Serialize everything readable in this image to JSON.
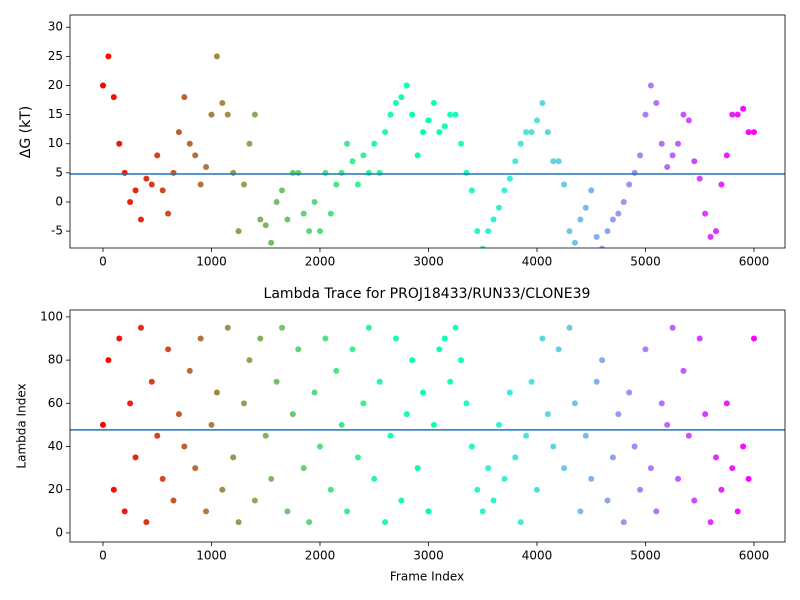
{
  "chart_data": [
    {
      "type": "scatter",
      "ylabel": "ΔG (kT)",
      "colormap": "rainbow_r",
      "clim": [
        0,
        6000
      ],
      "hline": 4.8,
      "hline_color": "#1f77b4",
      "xlim": [
        -304,
        6286
      ],
      "ylim": [
        -7.9,
        32.1
      ],
      "xticks": [
        0,
        1000,
        2000,
        3000,
        4000,
        5000,
        6000
      ],
      "yticks": [
        -5,
        0,
        5,
        10,
        15,
        20,
        25,
        30
      ],
      "x": [
        0,
        50,
        100,
        150,
        200,
        250,
        300,
        350,
        400,
        450,
        500,
        550,
        600,
        650,
        700,
        750,
        800,
        850,
        900,
        950,
        1000,
        1050,
        1100,
        1150,
        1200,
        1250,
        1300,
        1350,
        1400,
        1450,
        1500,
        1550,
        1600,
        1650,
        1700,
        1750,
        1800,
        1850,
        1900,
        1950,
        2000,
        2050,
        2100,
        2150,
        2200,
        2250,
        2300,
        2350,
        2400,
        2450,
        2500,
        2550,
        2600,
        2650,
        2700,
        2750,
        2800,
        2850,
        2900,
        2950,
        3000,
        3050,
        3100,
        3150,
        3200,
        3250,
        3300,
        3350,
        3400,
        3450,
        3500,
        3550,
        3600,
        3650,
        3700,
        3750,
        3800,
        3850,
        3900,
        3950,
        4000,
        4050,
        4100,
        4150,
        4200,
        4250,
        4300,
        4350,
        4400,
        4450,
        4500,
        4550,
        4600,
        4650,
        4700,
        4750,
        4800,
        4850,
        4900,
        4950,
        5000,
        5050,
        5100,
        5150,
        5200,
        5250,
        5300,
        5350,
        5400,
        5450,
        5500,
        5550,
        5600,
        5650,
        5700,
        5750,
        5800,
        5850,
        5900,
        5950,
        6000
      ],
      "values": [
        20,
        25,
        18,
        10,
        5,
        0,
        2,
        -3,
        4,
        3,
        8,
        2,
        -2,
        5,
        12,
        18,
        10,
        8,
        3,
        6,
        15,
        25,
        17,
        15,
        5,
        -5,
        3,
        10,
        15,
        -3,
        -4,
        -7,
        0,
        2,
        -3,
        5,
        5,
        -2,
        -5,
        0,
        -5,
        5,
        -2,
        3,
        5,
        10,
        7,
        3,
        8,
        5,
        10,
        5,
        12,
        15,
        17,
        18,
        20,
        15,
        8,
        12,
        14,
        17,
        12,
        13,
        15,
        15,
        10,
        5,
        2,
        -5,
        -8,
        -5,
        -3,
        -1,
        2,
        4,
        7,
        10,
        12,
        12,
        14,
        17,
        12,
        7,
        7,
        3,
        -5,
        -7,
        -3,
        -1,
        2,
        -6,
        -8,
        -5,
        -3,
        -2,
        0,
        3,
        5,
        8,
        15,
        20,
        17,
        10,
        6,
        8,
        10,
        15,
        14,
        7,
        4,
        -2,
        -6,
        -5,
        3,
        8,
        15,
        15,
        16,
        12,
        12
      ]
    },
    {
      "type": "scatter",
      "title": "Lambda Trace for PROJ18433/RUN33/CLONE39",
      "xlabel": "Frame Index",
      "ylabel": "Lambda Index",
      "colormap": "rainbow_r",
      "clim": [
        0,
        6000
      ],
      "hline": 47.7,
      "hline_color": "#1f77b4",
      "xlim": [
        -304,
        6286
      ],
      "ylim": [
        -4.2,
        103.2
      ],
      "xticks": [
        0,
        1000,
        2000,
        3000,
        4000,
        5000,
        6000
      ],
      "yticks": [
        0,
        20,
        40,
        60,
        80,
        100
      ],
      "x": [
        0,
        50,
        100,
        150,
        200,
        250,
        300,
        350,
        400,
        450,
        500,
        550,
        600,
        650,
        700,
        750,
        800,
        850,
        900,
        950,
        1000,
        1050,
        1100,
        1150,
        1200,
        1250,
        1300,
        1350,
        1400,
        1450,
        1500,
        1550,
        1600,
        1650,
        1700,
        1750,
        1800,
        1850,
        1900,
        1950,
        2000,
        2050,
        2100,
        2150,
        2200,
        2250,
        2300,
        2350,
        2400,
        2450,
        2500,
        2550,
        2600,
        2650,
        2700,
        2750,
        2800,
        2850,
        2900,
        2950,
        3000,
        3050,
        3100,
        3150,
        3200,
        3250,
        3300,
        3350,
        3400,
        3450,
        3500,
        3550,
        3600,
        3650,
        3700,
        3750,
        3800,
        3850,
        3900,
        3950,
        4000,
        4050,
        4100,
        4150,
        4200,
        4250,
        4300,
        4350,
        4400,
        4450,
        4500,
        4550,
        4600,
        4650,
        4700,
        4750,
        4800,
        4850,
        4900,
        4950,
        5000,
        5050,
        5100,
        5150,
        5200,
        5250,
        5300,
        5350,
        5400,
        5450,
        5500,
        5550,
        5600,
        5650,
        5700,
        5750,
        5800,
        5850,
        5900,
        5950,
        6000
      ],
      "values": [
        50,
        80,
        20,
        90,
        10,
        60,
        35,
        95,
        5,
        70,
        45,
        25,
        85,
        15,
        55,
        40,
        75,
        30,
        90,
        10,
        50,
        65,
        20,
        95,
        35,
        5,
        60,
        80,
        15,
        90,
        45,
        25,
        70,
        95,
        10,
        55,
        85,
        30,
        5,
        65,
        40,
        90,
        20,
        75,
        50,
        10,
        85,
        35,
        60,
        95,
        25,
        70,
        5,
        45,
        90,
        15,
        55,
        80,
        30,
        65,
        10,
        50,
        85,
        90,
        70,
        95,
        80,
        60,
        40,
        20,
        10,
        30,
        15,
        50,
        25,
        65,
        35,
        5,
        45,
        70,
        20,
        90,
        55,
        40,
        85,
        30,
        95,
        60,
        10,
        45,
        25,
        70,
        80,
        15,
        35,
        55,
        5,
        65,
        40,
        20,
        85,
        30,
        10,
        60,
        50,
        95,
        25,
        75,
        45,
        15,
        90,
        55,
        5,
        35,
        20,
        60,
        30,
        10,
        40,
        25,
        90
      ]
    }
  ]
}
